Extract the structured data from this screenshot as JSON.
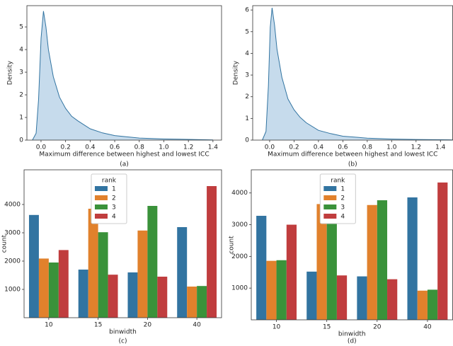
{
  "chart_data": [
    {
      "type": "area",
      "caption": "(a)",
      "xlabel": "Maximum difference between highest and lowest ICC",
      "ylabel": "Density",
      "color": "#3274a1",
      "fill": "#c6dbec",
      "x": [
        -0.07,
        -0.04,
        -0.02,
        0,
        0.02,
        0.04,
        0.06,
        0.1,
        0.15,
        0.2,
        0.25,
        0.3,
        0.4,
        0.5,
        0.6,
        0.8,
        1.0,
        1.2,
        1.4
      ],
      "values": [
        0,
        0.3,
        1.8,
        4.5,
        5.7,
        5.0,
        4.0,
        2.8,
        1.9,
        1.4,
        1.05,
        0.85,
        0.5,
        0.32,
        0.2,
        0.09,
        0.05,
        0.03,
        0.01
      ],
      "xlim": [
        -0.115,
        1.47
      ],
      "ylim": [
        0,
        5.94
      ],
      "xticks": [
        {
          "value": 0,
          "label": "0.0"
        },
        0.2,
        0.4,
        0.6,
        0.8,
        {
          "value": 1,
          "label": "1.0"
        },
        1.2,
        1.4
      ],
      "yticks": [
        0,
        1,
        2,
        3,
        4,
        5
      ]
    },
    {
      "type": "area",
      "caption": "(b)",
      "xlabel": "Maximum difference between highest and lowest ICC",
      "ylabel": "Density",
      "color": "#3274a1",
      "fill": "#c6dbec",
      "x": [
        -0.06,
        -0.03,
        -0.01,
        0.005,
        0.02,
        0.04,
        0.06,
        0.1,
        0.15,
        0.2,
        0.25,
        0.3,
        0.4,
        0.5,
        0.6,
        0.8,
        1.0,
        1.2,
        1.5
      ],
      "values": [
        0,
        0.4,
        2.5,
        5.2,
        6.1,
        5.3,
        4.2,
        2.9,
        1.9,
        1.4,
        1.05,
        0.8,
        0.45,
        0.3,
        0.18,
        0.09,
        0.05,
        0.03,
        0.01
      ],
      "xlim": [
        -0.139,
        1.5
      ],
      "ylim": [
        0,
        6.2
      ],
      "xticks": [
        {
          "value": 0,
          "label": "0.0"
        },
        0.2,
        0.4,
        0.6,
        0.8,
        {
          "value": 1,
          "label": "1.0"
        },
        1.2,
        1.4
      ],
      "yticks": [
        0,
        1,
        2,
        3,
        4,
        5,
        6
      ]
    },
    {
      "type": "bar",
      "caption": "(c)",
      "xlabel": "binwidth",
      "ylabel": "count",
      "legend_title": "rank",
      "categories": [
        "10",
        "15",
        "20",
        "40"
      ],
      "series": [
        {
          "name": "1",
          "color": "#3274a1",
          "values": [
            3630,
            1700,
            1600,
            3200
          ]
        },
        {
          "name": "2",
          "color": "#e1812c",
          "values": [
            2090,
            3850,
            3080,
            1100
          ]
        },
        {
          "name": "3",
          "color": "#3a923a",
          "values": [
            1950,
            3020,
            3950,
            1120
          ]
        },
        {
          "name": "4",
          "color": "#c03d3e",
          "values": [
            2390,
            1520,
            1450,
            4650
          ]
        }
      ],
      "ylim": [
        0,
        5225
      ],
      "yticks": [
        1000,
        2000,
        3000,
        4000
      ],
      "legend": "upper center"
    },
    {
      "type": "bar",
      "caption": "(d)",
      "xlabel": "binwidth",
      "ylabel": "count",
      "legend_title": "rank",
      "categories": [
        "10",
        "15",
        "20",
        "40"
      ],
      "series": [
        {
          "name": "1",
          "color": "#3274a1",
          "values": [
            3280,
            1520,
            1370,
            3860
          ]
        },
        {
          "name": "2",
          "color": "#e1812c",
          "values": [
            1860,
            3650,
            3620,
            920
          ]
        },
        {
          "name": "3",
          "color": "#3a923a",
          "values": [
            1880,
            3450,
            3770,
            950
          ]
        },
        {
          "name": "4",
          "color": "#c03d3e",
          "values": [
            3000,
            1400,
            1280,
            4330
          ]
        }
      ],
      "ylim": [
        0,
        4730
      ],
      "yticks": [
        1000,
        2000,
        3000,
        4000
      ],
      "legend": "upper center"
    }
  ]
}
